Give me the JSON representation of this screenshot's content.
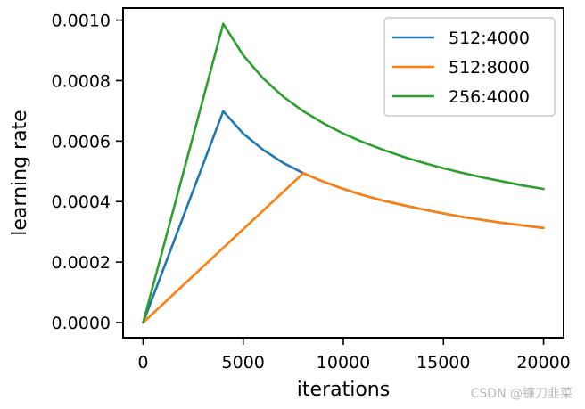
{
  "chart_data": {
    "type": "line",
    "xlabel": "iterations",
    "ylabel": "learning rate",
    "xlim": [
      -1000,
      21000
    ],
    "ylim": [
      -5e-05,
      0.00104
    ],
    "xticks": [
      0,
      5000,
      10000,
      15000,
      20000
    ],
    "xtick_labels": [
      "0",
      "5000",
      "10000",
      "15000",
      "20000"
    ],
    "yticks": [
      0,
      0.0002,
      0.0004,
      0.0006,
      0.0008,
      0.001
    ],
    "ytick_labels": [
      "0.0000",
      "0.0002",
      "0.0004",
      "0.0006",
      "0.0008",
      "0.0010"
    ],
    "grid": false,
    "legend_position": "top-right",
    "series": [
      {
        "name": "512:4000",
        "color": "#1f77b4",
        "x": [
          0,
          4000,
          5000,
          6000,
          7000,
          8000,
          9000,
          10000,
          11000,
          12000,
          13000,
          14000,
          15000,
          16000,
          17000,
          18000,
          19000,
          20000
        ],
        "y": [
          0,
          0.000699,
          0.000625,
          0.000571,
          0.000528,
          0.000494,
          0.000466,
          0.000442,
          0.000421,
          0.000403,
          0.000388,
          0.000374,
          0.000361,
          0.000349,
          0.000339,
          0.000329,
          0.000321,
          0.000313
        ]
      },
      {
        "name": "512:8000",
        "color": "#ff7f0e",
        "x": [
          0,
          8000,
          9000,
          10000,
          11000,
          12000,
          13000,
          14000,
          15000,
          16000,
          17000,
          18000,
          19000,
          20000
        ],
        "y": [
          0,
          0.000494,
          0.000466,
          0.000442,
          0.000421,
          0.000403,
          0.000388,
          0.000374,
          0.000361,
          0.000349,
          0.000339,
          0.000329,
          0.000321,
          0.000313
        ]
      },
      {
        "name": "256:4000",
        "color": "#2ca02c",
        "x": [
          0,
          4000,
          5000,
          6000,
          7000,
          8000,
          9000,
          10000,
          11000,
          12000,
          13000,
          14000,
          15000,
          16000,
          17000,
          18000,
          19000,
          20000
        ],
        "y": [
          0,
          0.000988,
          0.000884,
          0.000807,
          0.000747,
          0.000699,
          0.000659,
          0.000625,
          0.000596,
          0.000571,
          0.000548,
          0.000528,
          0.00051,
          0.000494,
          0.000479,
          0.000466,
          0.000453,
          0.000442
        ]
      }
    ]
  },
  "watermark": "CSDN @镰刀韭菜"
}
